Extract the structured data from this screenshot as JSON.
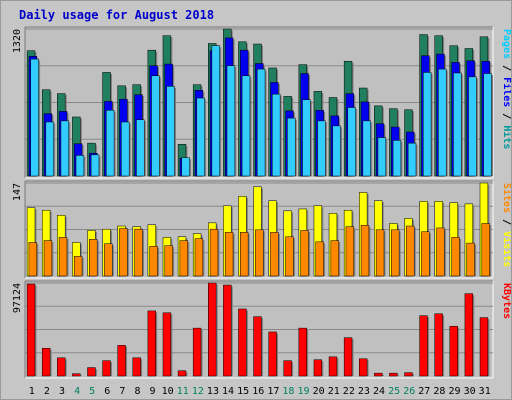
{
  "chart_data": {
    "type": "bar",
    "title": "Daily usage for August 2018",
    "categories": [
      "1",
      "2",
      "3",
      "4",
      "5",
      "6",
      "7",
      "8",
      "9",
      "10",
      "11",
      "12",
      "13",
      "14",
      "15",
      "16",
      "17",
      "18",
      "19",
      "20",
      "21",
      "22",
      "23",
      "24",
      "25",
      "26",
      "27",
      "28",
      "29",
      "30",
      "31"
    ],
    "weekend_days": [
      "4",
      "5",
      "11",
      "12",
      "18",
      "19",
      "25",
      "26"
    ],
    "panels": [
      {
        "id": "top",
        "max_label": "1320",
        "ymax": 1320,
        "right_label": [
          {
            "text": "Pages",
            "color": "#00ccff"
          },
          {
            "text": " / ",
            "color": "#000000"
          },
          {
            "text": "Files",
            "color": "#0000ff"
          },
          {
            "text": " / ",
            "color": "#000000"
          },
          {
            "text": "Hits",
            "color": "#009999"
          }
        ],
        "series": [
          {
            "name": "Hits",
            "color": "#1f7f5f",
            "values": [
              1125,
              775,
              740,
              530,
              295,
              930,
              810,
              820,
              1130,
              1260,
              285,
              820,
              1190,
              1320,
              1205,
              1185,
              970,
              715,
              1000,
              760,
              705,
              1030,
              790,
              630,
              605,
              595,
              1270,
              1260,
              1170,
              1145,
              1250
            ]
          },
          {
            "name": "Files",
            "color": "#0000ee",
            "values": [
              1075,
              560,
              580,
              290,
              205,
              670,
              690,
              730,
              990,
              1005,
              160,
              770,
              1125,
              1240,
              1130,
              1010,
              840,
              585,
              920,
              590,
              540,
              740,
              665,
              470,
              440,
              395,
              1080,
              1095,
              1020,
              1035,
              1030
            ]
          },
          {
            "name": "Pages",
            "color": "#33ccff",
            "values": [
              1050,
              485,
              495,
              185,
              190,
              590,
              485,
              505,
              900,
              805,
              165,
              700,
              1170,
              990,
              900,
              960,
              735,
              520,
              685,
              495,
              450,
              615,
              495,
              345,
              320,
              295,
              930,
              960,
              925,
              890,
              920
            ]
          }
        ]
      },
      {
        "id": "middle",
        "max_label": "147",
        "ymax": 147,
        "right_label": [
          {
            "text": "Sites",
            "color": "#ff8800"
          },
          {
            "text": " / ",
            "color": "#000000"
          },
          {
            "text": "Visits",
            "color": "#ffff00"
          }
        ],
        "series": [
          {
            "name": "Visits",
            "color": "#ffff00",
            "values": [
              108,
              104,
              96,
              53,
              72,
              74,
              79,
              78,
              81,
              61,
              62,
              67,
              84,
              111,
              126,
              141,
              119,
              103,
              106,
              111,
              99,
              104,
              132,
              119,
              83,
              91,
              118,
              118,
              116,
              114,
              147
            ]
          },
          {
            "name": "Sites",
            "color": "#ff8800",
            "values": [
              53,
              56,
              61,
              31,
              58,
              51,
              75,
              74,
              47,
              48,
              56,
              59,
              74,
              69,
              69,
              73,
              69,
              62,
              72,
              54,
              56,
              78,
              80,
              73,
              73,
              79,
              70,
              76,
              61,
              52,
              83
            ]
          }
        ]
      },
      {
        "id": "bottom",
        "max_label": "97124",
        "ymax": 97124,
        "right_label": [
          {
            "text": "KBytes",
            "color": "#ff0000"
          }
        ],
        "series": [
          {
            "name": "KBytes",
            "color": "#ff0000",
            "values": [
              96000,
              29000,
              19000,
              2400,
              8800,
              16000,
              32000,
              19000,
              68000,
              66000,
              5500,
              50000,
              97124,
              95000,
              70000,
              62000,
              46000,
              16000,
              50000,
              17000,
              20000,
              40000,
              18000,
              3000,
              3000,
              3500,
              63000,
              65000,
              52000,
              86000,
              61000
            ]
          }
        ]
      }
    ]
  }
}
